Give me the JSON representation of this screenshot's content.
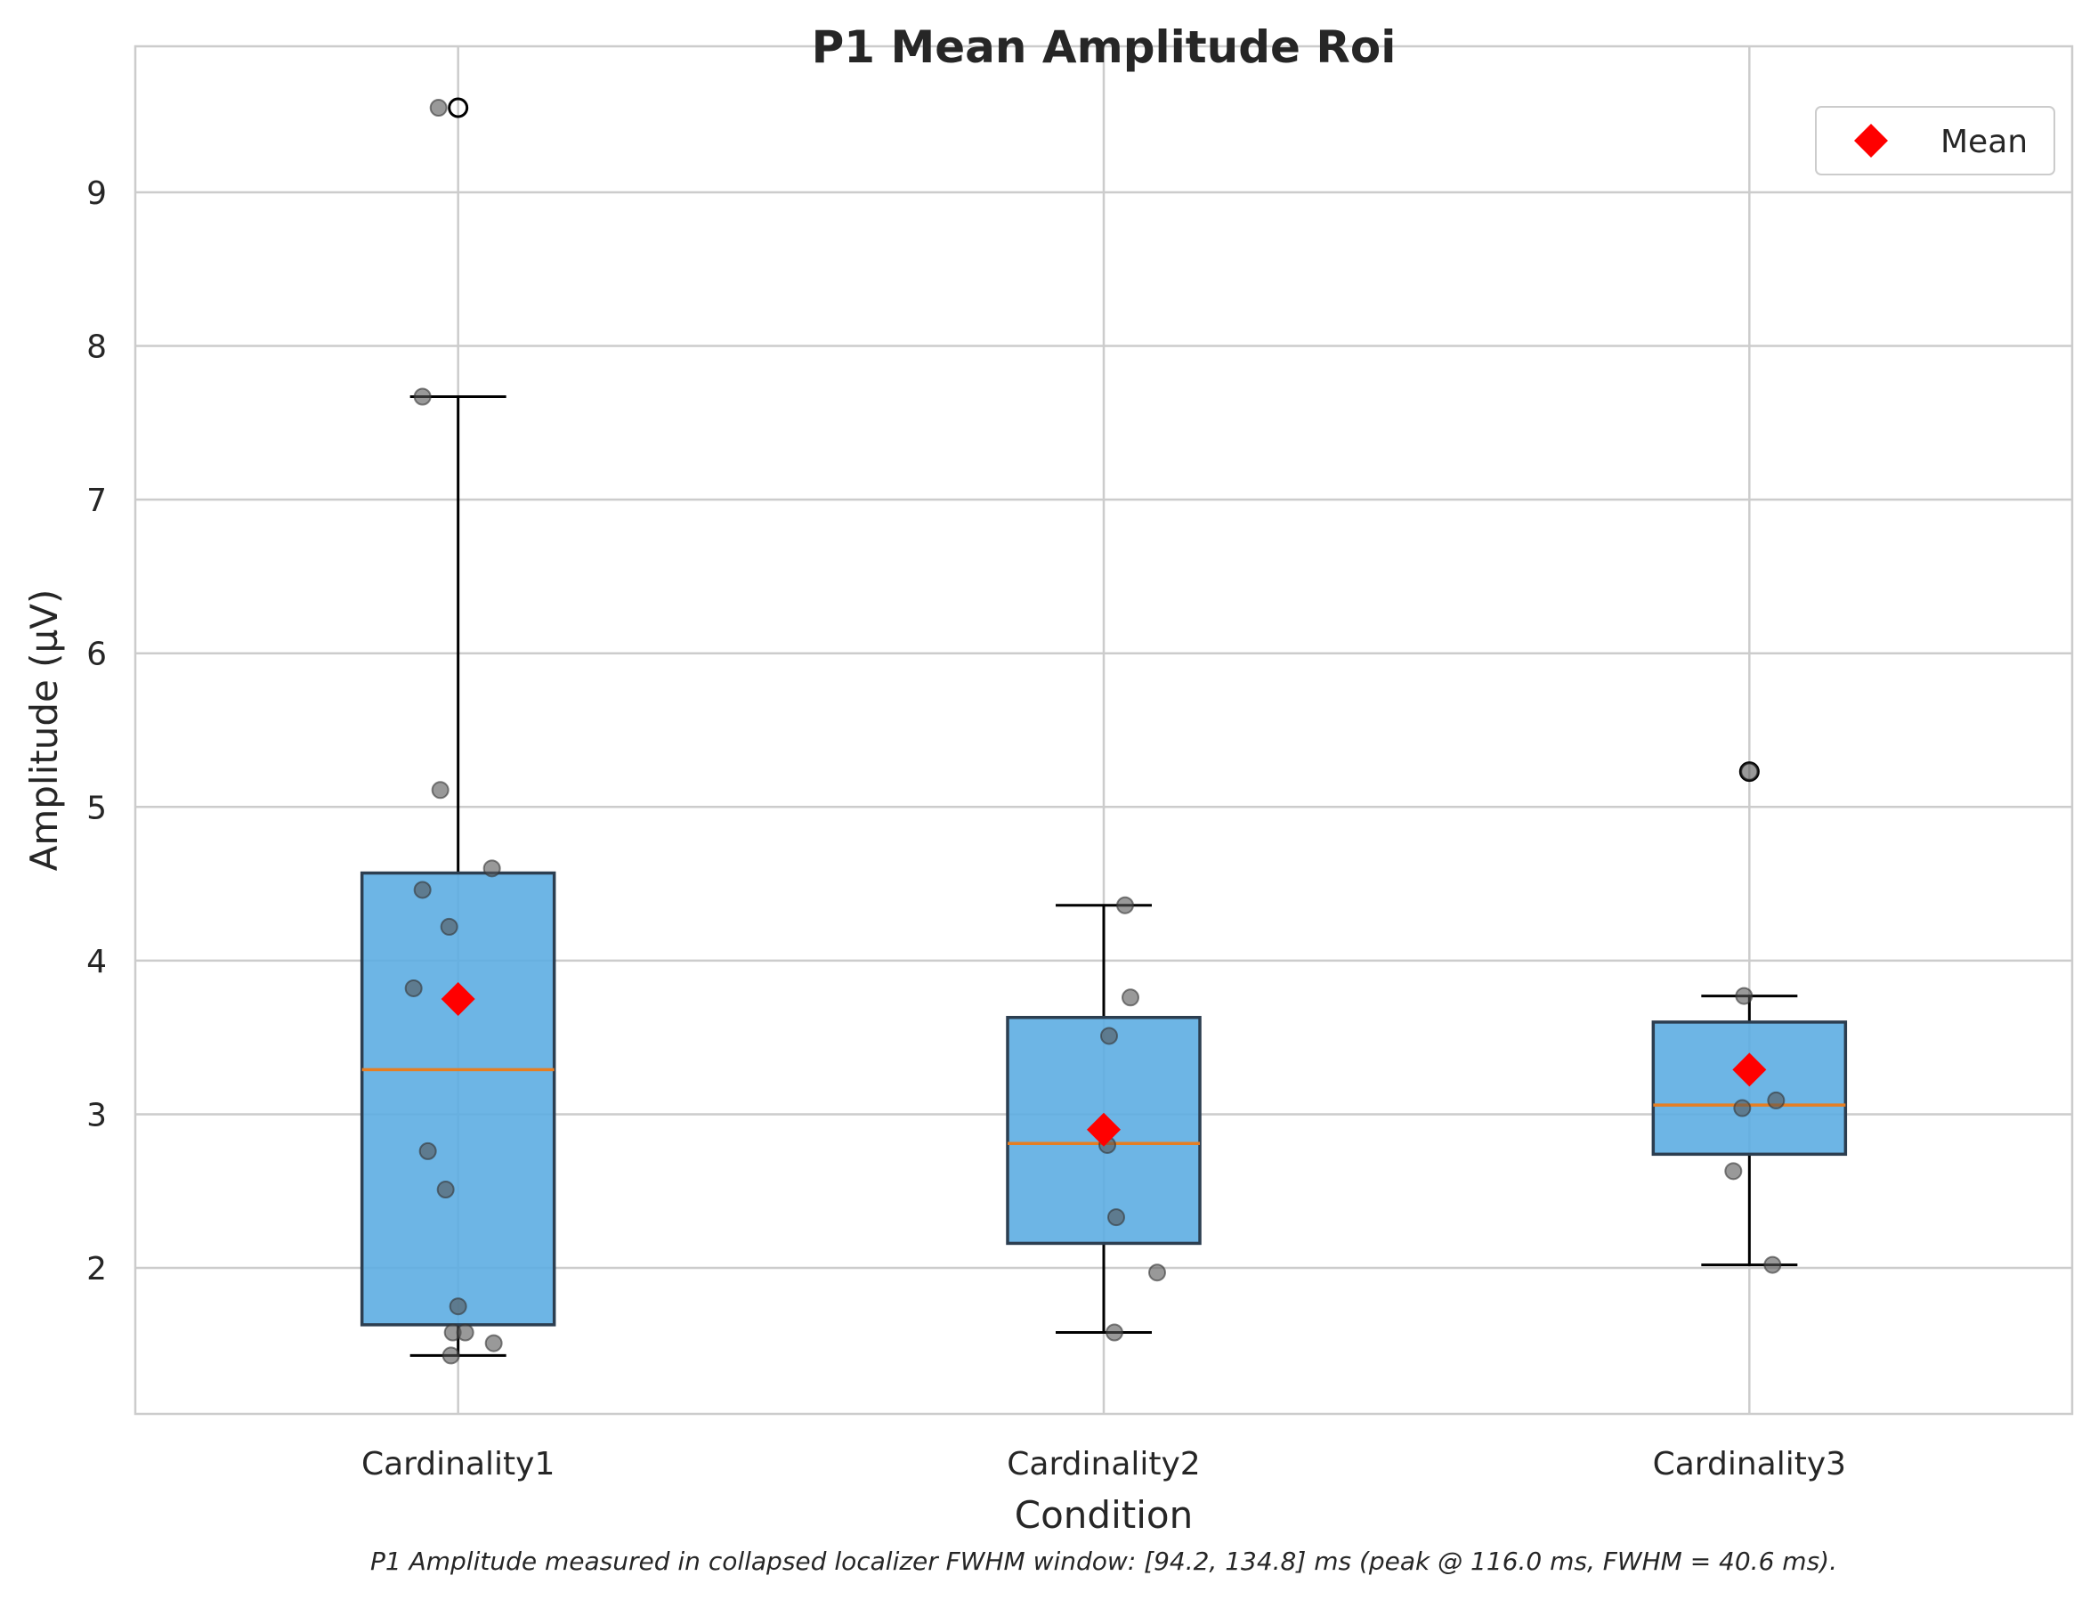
{
  "chart_data": {
    "type": "box",
    "title": "P1 Mean Amplitude Roi",
    "xlabel": "Condition",
    "ylabel": "Amplitude (µV)",
    "caption": "P1 Amplitude measured in collapsed localizer FWHM window: [94.2, 134.8] ms (peak @ 116.0 ms, FWHM = 40.6 ms).",
    "ylim": [
      1.05,
      9.95
    ],
    "yticks": [
      2,
      3,
      4,
      5,
      6,
      7,
      8,
      9
    ],
    "categories": [
      "Cardinality1",
      "Cardinality2",
      "Cardinality3"
    ],
    "grid": true,
    "legend": {
      "placement": "top-right",
      "entries": [
        "Mean"
      ]
    },
    "colors": {
      "box_fill": "#5dade2",
      "box_edge": "#2c3e50",
      "median": "#e67e22",
      "mean": "#ff0000",
      "points": "#555555",
      "grid": "#cccccc"
    },
    "boxes": [
      {
        "category": "Cardinality1",
        "whisker_low": 1.43,
        "q1": 1.63,
        "median": 3.29,
        "q3": 4.57,
        "whisker_high": 7.67,
        "mean": 3.75,
        "outliers": [
          9.55
        ]
      },
      {
        "category": "Cardinality2",
        "whisker_low": 1.58,
        "q1": 2.16,
        "median": 2.81,
        "q3": 3.63,
        "whisker_high": 4.36,
        "mean": 2.9,
        "outliers": []
      },
      {
        "category": "Cardinality3",
        "whisker_low": 2.02,
        "q1": 2.74,
        "median": 3.06,
        "q3": 3.6,
        "whisker_high": 3.77,
        "mean": 3.29,
        "outliers": [
          5.23
        ]
      }
    ],
    "points": [
      {
        "category": "Cardinality1",
        "values": [
          9.55,
          7.67,
          5.11,
          4.6,
          4.46,
          4.22,
          3.82,
          2.76,
          2.51,
          1.75,
          1.58,
          1.58,
          1.51,
          1.43
        ]
      },
      {
        "category": "Cardinality2",
        "values": [
          4.36,
          3.76,
          3.51,
          2.8,
          2.33,
          1.97,
          1.58
        ]
      },
      {
        "category": "Cardinality3",
        "values": [
          5.23,
          3.77,
          3.09,
          3.04,
          2.63,
          2.02
        ]
      }
    ]
  }
}
